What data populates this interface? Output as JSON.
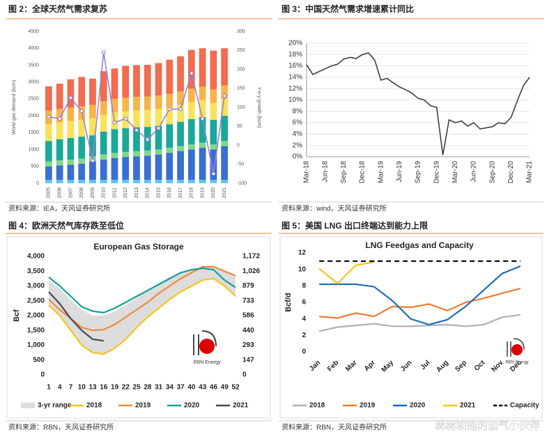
{
  "panels": [
    {
      "caption": "图 2：全球天然气需求复苏",
      "source": "资料来源：IEA，天风证券研究所",
      "chart_data": {
        "type": "bar",
        "stacked": true,
        "y_label": "World gas demand (bcm)",
        "y2_label": "Y-o-y growth (bcm)",
        "categories": [
          "2005",
          "2006",
          "2007",
          "2008",
          "2009",
          "2010",
          "2011",
          "2012",
          "2013",
          "2014",
          "2015",
          "2016",
          "2017",
          "2018",
          "2019",
          "2020",
          "2021"
        ],
        "ylim": [
          0,
          4500
        ],
        "yticks": [
          0,
          500,
          1000,
          1500,
          2000,
          2500,
          3000,
          3500,
          4000,
          4500
        ],
        "y2lim": [
          -100,
          300
        ],
        "y2ticks": [
          -100,
          -50,
          0,
          50,
          100,
          150,
          200,
          250,
          300
        ],
        "series": [
          {
            "color": "#5bc8f0",
            "values": [
              100,
              100,
              100,
              100,
              100,
              100,
              100,
              100,
              100,
              100,
              100,
              100,
              100,
              100,
              100,
              100,
              100
            ]
          },
          {
            "color": "#3a6fd1",
            "values": [
              400,
              430,
              450,
              480,
              550,
              600,
              650,
              680,
              700,
              720,
              750,
              800,
              850,
              900,
              950,
              900,
              1000
            ]
          },
          {
            "color": "#7fd98a",
            "values": [
              150,
              150,
              150,
              150,
              150,
              150,
              150,
              150,
              150,
              150,
              150,
              150,
              150,
              150,
              150,
              150,
              150
            ]
          },
          {
            "color": "#1aa89a",
            "values": [
              600,
              620,
              640,
              650,
              620,
              680,
              700,
              700,
              710,
              700,
              700,
              700,
              720,
              750,
              760,
              730,
              750
            ]
          },
          {
            "color": "#f9e25a",
            "values": [
              500,
              500,
              500,
              500,
              500,
              500,
              500,
              500,
              500,
              500,
              500,
              500,
              500,
              500,
              500,
              500,
              500
            ]
          },
          {
            "color": "#f7b44a",
            "values": [
              400,
              400,
              400,
              400,
              400,
              400,
              400,
              400,
              400,
              400,
              400,
              400,
              400,
              400,
              400,
              400,
              400
            ]
          },
          {
            "color": "#f26c4f",
            "values": [
              720,
              750,
              840,
              870,
              780,
              890,
              900,
              950,
              940,
              940,
              960,
              1010,
              1040,
              1150,
              1140,
              1150,
              1100
            ]
          },
          {
            "type": "line",
            "axis": "y2",
            "color": "#9b7fd4",
            "values": [
              75,
              70,
              125,
              90,
              -40,
              245,
              60,
              70,
              40,
              15,
              45,
              95,
              95,
              190,
              70,
              -75,
              130
            ]
          }
        ]
      }
    },
    {
      "caption": "图 3：中国天然气需求增速累计同比",
      "source": "资料来源：wind，天风证券研究所",
      "chart_data": {
        "type": "line",
        "grid": true,
        "color": "#404040",
        "categories": [
          "Mar-18",
          null,
          null,
          "Jun-18",
          null,
          null,
          "Sep-18",
          null,
          null,
          "Dec-18",
          null,
          null,
          "Mar-19",
          null,
          null,
          "Jun-19",
          null,
          null,
          "Sep-19",
          null,
          null,
          "Dec-19",
          null,
          null,
          "Mar-20",
          null,
          null,
          "Jun-20",
          null,
          null,
          "Sep-20",
          null,
          null,
          "Dec-20",
          null,
          null,
          "Mar-21"
        ],
        "values": [
          16.2,
          14.5,
          15,
          15.5,
          16,
          16.3,
          17.2,
          17.5,
          17.3,
          18,
          18.3,
          17,
          13.5,
          13.8,
          13,
          12.3,
          11.8,
          11.2,
          10.3,
          10,
          9,
          8.7,
          0.3,
          6.5,
          6,
          6.3,
          5.4,
          6,
          4.9,
          5.1,
          5.3,
          6,
          5.8,
          6.9,
          9.8,
          12.5,
          14
        ],
        "ylim": [
          0,
          20
        ],
        "yticks": [
          {
            "value": 0,
            "label": "0%"
          },
          {
            "value": 2,
            "label": "2%"
          },
          {
            "value": 4,
            "label": "4%"
          },
          {
            "value": 6,
            "label": "6%"
          },
          {
            "value": 8,
            "label": "8%"
          },
          {
            "value": 10,
            "label": "10%"
          },
          {
            "value": 12,
            "label": "12%"
          },
          {
            "value": 14,
            "label": "14%"
          },
          {
            "value": 16,
            "label": "16%"
          },
          {
            "value": 18,
            "label": "18%"
          },
          {
            "value": 20,
            "label": "20%"
          }
        ]
      }
    },
    {
      "caption": "图 4：欧洲天然气库存跌至低位",
      "source": "资料来源：RBN，天风证券研究所",
      "logo": "RBN Energy",
      "chart_data": {
        "type": "line",
        "title": "European Gas Storage",
        "y_label": "Bcf",
        "legend": "bottom",
        "x": [
          1,
          4,
          7,
          10,
          13,
          16,
          19,
          22,
          25,
          28,
          31,
          34,
          37,
          40,
          43,
          46,
          49,
          52
        ],
        "xlim": [
          1,
          52
        ],
        "xticks": [
          1,
          4,
          7,
          10,
          13,
          16,
          19,
          22,
          25,
          28,
          31,
          34,
          37,
          40,
          43,
          46,
          49,
          52
        ],
        "ylim": [
          0,
          4000
        ],
        "yticks": [
          0,
          500,
          {
            "value": 1000,
            "label": "1,000"
          },
          {
            "value": 1500,
            "label": "1,500"
          },
          {
            "value": 2000,
            "label": "2,000"
          },
          {
            "value": 2500,
            "label": "2,500"
          },
          {
            "value": 3000,
            "label": "3,000"
          },
          {
            "value": 3500,
            "label": "3,500"
          },
          {
            "value": 4000,
            "label": "4,000"
          }
        ],
        "y2lim": [
          0,
          1172
        ],
        "y2ticks": [
          0,
          147,
          293,
          440,
          586,
          733,
          879,
          {
            "value": 1026,
            "label": "1,026"
          },
          {
            "value": 1172,
            "label": "1,172"
          }
        ],
        "series": [
          {
            "name": "3-yr range",
            "color": "#dddddd",
            "high": [
              3200,
              2900,
              2550,
              2200,
              2000,
              2000,
              2150,
              2350,
              2600,
              2850,
              3100,
              3300,
              3450,
              3550,
              3650,
              3650,
              3500,
              3350
            ],
            "low": [
              2350,
              2000,
              1500,
              1000,
              750,
              700,
              900,
              1200,
              1600,
              1950,
              2250,
              2550,
              2800,
              3000,
              3200,
              3250,
              3000,
              2650
            ]
          },
          {
            "name": "2018",
            "color": "#f5c518",
            "values": [
              2350,
              2000,
              1500,
              1000,
              750,
              700,
              900,
              1200,
              1600,
              1950,
              2250,
              2550,
              2800,
              3000,
              3200,
              3250,
              3000,
              2650
            ]
          },
          {
            "name": "2019",
            "color": "#ec8a3c",
            "values": [
              2550,
              2200,
              1900,
              1600,
              1500,
              1530,
              1700,
              1950,
              2200,
              2450,
              2750,
              3000,
              3250,
              3450,
              3650,
              3650,
              3500,
              3350
            ]
          },
          {
            "name": "2020",
            "color": "#16a096",
            "values": [
              3300,
              3000,
              2650,
              2300,
              2150,
              2100,
              2250,
              2450,
              2650,
              2850,
              3050,
              3250,
              3450,
              3550,
              3600,
              3550,
              3200,
              2950
            ]
          },
          {
            "name": "2021",
            "color": "#414a5c",
            "values": [
              2800,
              2400,
              1900,
              1500,
              1200,
              1150,
              null,
              null,
              null,
              null,
              null,
              null,
              null,
              null,
              null,
              null,
              null,
              null
            ]
          }
        ]
      }
    },
    {
      "caption": "图 5：美国 LNG 出口终端达到能力上限",
      "source": "资料来源：RBN，天风证券研究所",
      "logo": "RBN Energy",
      "chart_data": {
        "type": "line",
        "title": "LNG Feedgas and Capacity",
        "y_label": "Bcf/d",
        "legend": "bottom",
        "categories": [
          "Jan",
          "Feb",
          "Mar",
          "Apr",
          "May",
          "Jun",
          "Jul",
          "Aug",
          "Sep",
          "Oct",
          "Nov",
          "Dec"
        ],
        "ylim": [
          0,
          12
        ],
        "yticks": [
          0,
          2,
          4,
          6,
          8,
          10,
          12
        ],
        "series": [
          {
            "name": "2018",
            "color": "#b0b0b0",
            "values": [
              2.5,
              3,
              3.2,
              3.4,
              3.1,
              3.1,
              3.2,
              3.3,
              3.1,
              3.3,
              4.2,
              4.5
            ]
          },
          {
            "name": "2019",
            "color": "#ec7d31",
            "values": [
              4.3,
              4.1,
              4.7,
              4.3,
              5.5,
              5.4,
              5.8,
              5,
              6,
              6.5,
              7.1,
              7.7
            ]
          },
          {
            "name": "2020",
            "color": "#1f6fb5",
            "values": [
              8.2,
              8.2,
              8.2,
              7.9,
              6.2,
              4,
              3.3,
              3.9,
              5.5,
              7.5,
              9.5,
              10.4
            ]
          },
          {
            "name": "2021",
            "color": "#f5c518",
            "values": [
              10.1,
              8.3,
              10.5,
              10.9,
              null,
              null,
              null,
              null,
              null,
              null,
              null,
              null
            ]
          },
          {
            "name": "Capacity",
            "color": "#000000",
            "dash": true,
            "values": [
              11,
              11,
              11,
              11,
              11,
              11,
              11,
              11,
              11,
              11,
              11,
              11
            ]
          }
        ]
      }
    }
  ],
  "watermark": "犇犇和她的油气小伙伴"
}
